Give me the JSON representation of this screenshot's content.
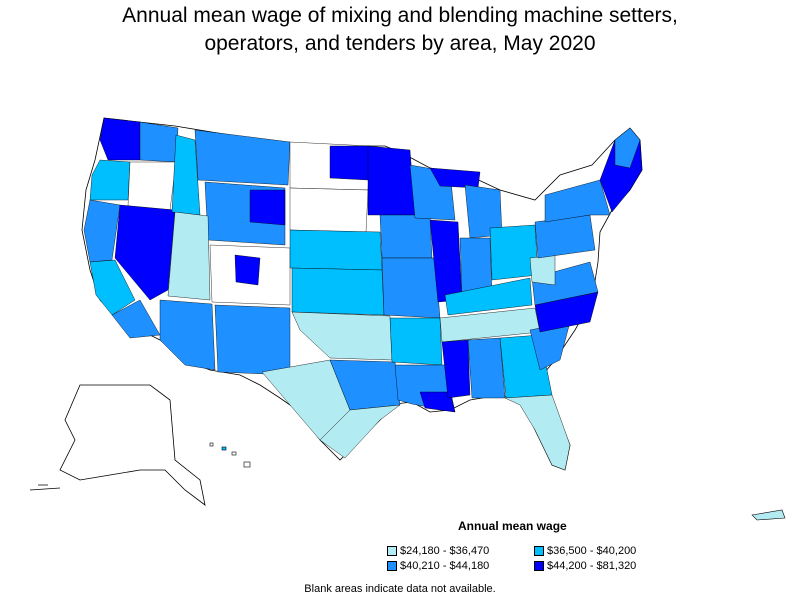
{
  "title": {
    "line1": "Annual mean wage of mixing and blending machine setters,",
    "line2": "operators, and tenders by area, May 2020"
  },
  "legend": {
    "title": "Annual mean wage",
    "items": [
      {
        "label": "$24,180 - $36,470",
        "color": "#b2ebf2"
      },
      {
        "label": "$36,500 - $40,200",
        "color": "#00bfff"
      },
      {
        "label": "$40,210 - $44,180",
        "color": "#1e90ff"
      },
      {
        "label": "$44,200 - $81,320",
        "color": "#0000ff"
      }
    ]
  },
  "footnote": "Blank areas indicate data not available.",
  "colors": {
    "no_data": "#ffffff",
    "border": "#000000",
    "tier1": "#b2ebf2",
    "tier2": "#00bfff",
    "tier3": "#1e90ff",
    "tier4": "#0000ff"
  }
}
